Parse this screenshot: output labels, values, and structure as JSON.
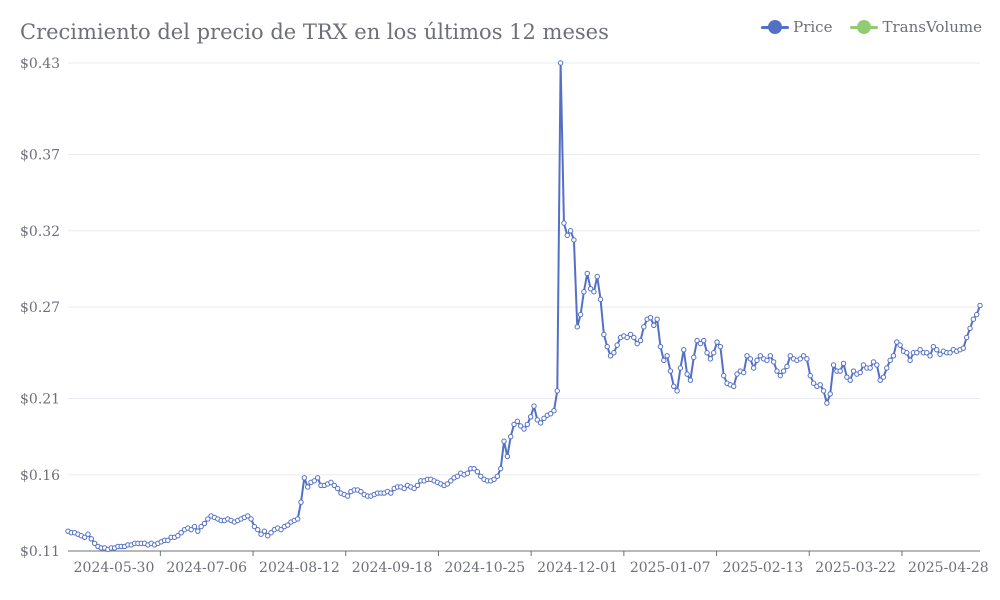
{
  "chart_data": {
    "type": "line",
    "title": "Crecimiento del precio de TRX en los últimos 12 meses",
    "legend": {
      "position": "top-right",
      "items": [
        {
          "name": "Price",
          "color": "#5470c6"
        },
        {
          "name": "TransVolume",
          "color": "#91cc75"
        }
      ]
    },
    "ylim": [
      0.11,
      0.43
    ],
    "y_ticks": [
      0.11,
      0.16,
      0.21,
      0.27,
      0.32,
      0.37,
      0.43
    ],
    "y_tick_labels": [
      "$0.11",
      "$0.16",
      "$0.21",
      "$0.27",
      "$0.32",
      "$0.37",
      "$0.43"
    ],
    "x_tick_labels": [
      "2024-05-30",
      "2024-07-06",
      "2024-08-12",
      "2024-09-18",
      "2024-10-25",
      "2024-12-01",
      "2025-01-07",
      "2025-02-13",
      "2025-03-22",
      "2025-04-28"
    ],
    "grid": true,
    "series": [
      {
        "name": "Price",
        "color": "#5470c6",
        "start_date": "2024-05-20",
        "values": [
          0.123,
          0.122,
          0.122,
          0.121,
          0.12,
          0.119,
          0.121,
          0.118,
          0.115,
          0.113,
          0.112,
          0.112,
          0.111,
          0.112,
          0.112,
          0.113,
          0.113,
          0.113,
          0.114,
          0.114,
          0.115,
          0.115,
          0.115,
          0.115,
          0.114,
          0.115,
          0.114,
          0.115,
          0.116,
          0.117,
          0.117,
          0.119,
          0.119,
          0.12,
          0.122,
          0.124,
          0.125,
          0.124,
          0.126,
          0.123,
          0.126,
          0.128,
          0.131,
          0.133,
          0.132,
          0.131,
          0.13,
          0.13,
          0.131,
          0.13,
          0.129,
          0.13,
          0.131,
          0.132,
          0.133,
          0.131,
          0.126,
          0.124,
          0.121,
          0.123,
          0.12,
          0.122,
          0.124,
          0.125,
          0.124,
          0.126,
          0.127,
          0.129,
          0.13,
          0.131,
          0.142,
          0.158,
          0.152,
          0.155,
          0.156,
          0.158,
          0.153,
          0.153,
          0.154,
          0.155,
          0.153,
          0.151,
          0.148,
          0.147,
          0.146,
          0.149,
          0.15,
          0.15,
          0.149,
          0.147,
          0.146,
          0.146,
          0.147,
          0.148,
          0.148,
          0.148,
          0.149,
          0.148,
          0.151,
          0.152,
          0.152,
          0.151,
          0.153,
          0.152,
          0.151,
          0.153,
          0.156,
          0.156,
          0.157,
          0.157,
          0.156,
          0.155,
          0.154,
          0.153,
          0.154,
          0.156,
          0.158,
          0.159,
          0.161,
          0.16,
          0.161,
          0.164,
          0.164,
          0.162,
          0.159,
          0.157,
          0.156,
          0.156,
          0.157,
          0.159,
          0.164,
          0.182,
          0.172,
          0.185,
          0.193,
          0.195,
          0.192,
          0.19,
          0.193,
          0.198,
          0.205,
          0.196,
          0.194,
          0.197,
          0.199,
          0.2,
          0.202,
          0.215,
          0.43,
          0.325,
          0.317,
          0.32,
          0.314,
          0.257,
          0.265,
          0.28,
          0.292,
          0.282,
          0.28,
          0.29,
          0.275,
          0.252,
          0.244,
          0.238,
          0.24,
          0.245,
          0.25,
          0.251,
          0.25,
          0.252,
          0.25,
          0.246,
          0.248,
          0.257,
          0.262,
          0.263,
          0.258,
          0.262,
          0.244,
          0.235,
          0.238,
          0.228,
          0.218,
          0.215,
          0.23,
          0.242,
          0.226,
          0.222,
          0.237,
          0.248,
          0.246,
          0.248,
          0.24,
          0.236,
          0.24,
          0.247,
          0.244,
          0.225,
          0.22,
          0.219,
          0.218,
          0.226,
          0.228,
          0.227,
          0.238,
          0.236,
          0.23,
          0.235,
          0.238,
          0.236,
          0.235,
          0.238,
          0.234,
          0.228,
          0.225,
          0.228,
          0.231,
          0.238,
          0.236,
          0.235,
          0.236,
          0.238,
          0.236,
          0.225,
          0.22,
          0.218,
          0.219,
          0.215,
          0.207,
          0.213,
          0.232,
          0.228,
          0.228,
          0.233,
          0.224,
          0.222,
          0.228,
          0.226,
          0.227,
          0.232,
          0.23,
          0.23,
          0.234,
          0.232,
          0.222,
          0.224,
          0.23,
          0.235,
          0.238,
          0.247,
          0.245,
          0.241,
          0.24,
          0.235,
          0.24,
          0.24,
          0.242,
          0.24,
          0.24,
          0.238,
          0.244,
          0.242,
          0.239,
          0.241,
          0.24,
          0.24,
          0.242,
          0.241,
          0.242,
          0.243,
          0.25,
          0.256,
          0.262,
          0.265,
          0.271
        ]
      }
    ]
  }
}
